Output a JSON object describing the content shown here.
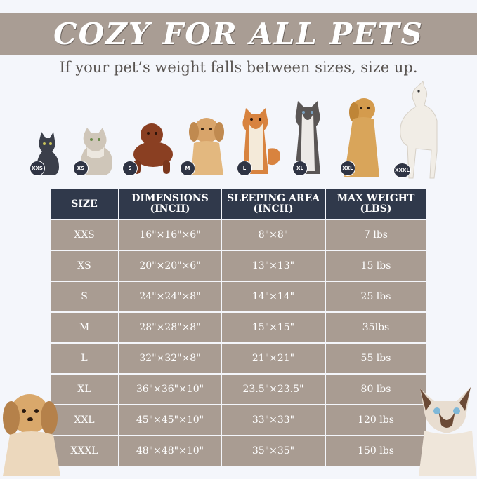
{
  "banner": {
    "title": "COZY FOR ALL PETS",
    "subtitle": "If your pet’s weight falls between sizes, size up."
  },
  "pets": [
    {
      "size": "XXS",
      "animal": "black cat",
      "color": "#3b3f4a"
    },
    {
      "size": "XS",
      "animal": "fluffy tabby cat",
      "color": "#c9bfb2"
    },
    {
      "size": "S",
      "animal": "brown poodle",
      "color": "#8a3f22"
    },
    {
      "size": "M",
      "animal": "cream dog",
      "color": "#d8a46a"
    },
    {
      "size": "L",
      "animal": "shiba inu",
      "color": "#d8833f"
    },
    {
      "size": "XL",
      "animal": "husky",
      "color": "#5a5655"
    },
    {
      "size": "XXL",
      "animal": "golden retriever",
      "color": "#d49b4d"
    },
    {
      "size": "XXXL",
      "animal": "great dane",
      "color": "#f1ede6"
    }
  ],
  "table": {
    "headers": [
      "SIZE",
      "DIMENSIONS\n(INCH)",
      "SLEEPING AREA\n(INCH)",
      "MAX WEIGHT\n(LBS)"
    ],
    "rows": [
      [
        "XXS",
        "16\"×16\"×6\"",
        "8\"×8\"",
        "7 lbs"
      ],
      [
        "XS",
        "20\"×20\"×6\"",
        "13\"×13\"",
        "15 lbs"
      ],
      [
        "S",
        "24\"×24\"×8\"",
        "14\"×14\"",
        "25 lbs"
      ],
      [
        "M",
        "28\"×28\"×8\"",
        "15\"×15\"",
        "35lbs"
      ],
      [
        "L",
        "32\"×32\"×8\"",
        "21\"×21\"",
        "55 lbs"
      ],
      [
        "XL",
        "36\"×36\"×10\"",
        "23.5\"×23.5\"",
        "80 lbs"
      ],
      [
        "XXL",
        "45\"×45\"×10\"",
        "33\"×33\"",
        "120 lbs"
      ],
      [
        "XXXL",
        "48\"×48\"×10\"",
        "35\"×35\"",
        "150 lbs"
      ]
    ]
  },
  "colors": {
    "header_bg": "#30394b",
    "cell_bg": "#a99c92",
    "band_bg": "#a99d94",
    "badge_bg": "#2f3444"
  }
}
